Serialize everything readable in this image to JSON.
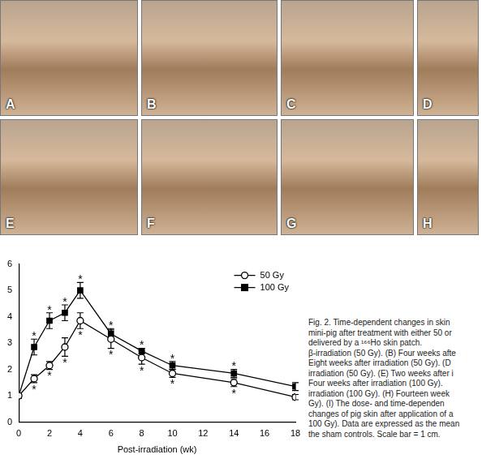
{
  "chart_data": {
    "type": "line",
    "x_label": "Post-irradiation (wk)",
    "x": [
      0,
      1,
      2,
      3,
      4,
      6,
      8,
      10,
      14,
      18
    ],
    "series": [
      {
        "name": "50 Gy",
        "color": "#000000",
        "marker": "circle",
        "values": [
          1,
          1.65,
          2.15,
          2.85,
          3.85,
          3.15,
          2.45,
          1.85,
          1.5,
          0.95
        ],
        "error": [
          0,
          0.15,
          0.15,
          0.35,
          0.3,
          0.35,
          0.25,
          0.15,
          0.15,
          0.1
        ]
      },
      {
        "name": "100 Gy",
        "color": "#000000",
        "marker": "square",
        "values": [
          1,
          2.85,
          3.85,
          4.15,
          5.0,
          3.35,
          2.7,
          2.15,
          1.85,
          1.35
        ],
        "error": [
          0,
          0.3,
          0.3,
          0.3,
          0.3,
          0.2,
          0.1,
          0.15,
          0.15,
          0.15
        ]
      }
    ],
    "annotations": [
      {
        "series": "50 Gy",
        "x": 1,
        "text": "*"
      },
      {
        "series": "50 Gy",
        "x": 2,
        "text": "*"
      },
      {
        "series": "50 Gy",
        "x": 3,
        "text": "*"
      },
      {
        "series": "50 Gy",
        "x": 4,
        "text": "*"
      },
      {
        "series": "50 Gy",
        "x": 6,
        "text": "*"
      },
      {
        "series": "50 Gy",
        "x": 8,
        "text": "*"
      },
      {
        "series": "50 Gy",
        "x": 10,
        "text": "*"
      },
      {
        "series": "50 Gy",
        "x": 14,
        "text": "*"
      },
      {
        "series": "100 Gy",
        "x": 1,
        "text": "*"
      },
      {
        "series": "100 Gy",
        "x": 2,
        "text": "*"
      },
      {
        "series": "100 Gy",
        "x": 3,
        "text": "*"
      },
      {
        "series": "100 Gy",
        "x": 4,
        "text": "*"
      },
      {
        "series": "100 Gy",
        "x": 6,
        "text": "*"
      },
      {
        "series": "100 Gy",
        "x": 8,
        "text": "*"
      },
      {
        "series": "100 Gy",
        "x": 10,
        "text": "*"
      },
      {
        "series": "100 Gy",
        "x": 14,
        "text": "*"
      }
    ],
    "xlim": [
      0,
      18
    ],
    "xticks": [
      0,
      2,
      4,
      6,
      8,
      10,
      12,
      14,
      16,
      18
    ],
    "ylim": [
      0,
      6
    ],
    "yticks": [
      0,
      1,
      2,
      3,
      4,
      5,
      6
    ],
    "grid": false,
    "legend": "upper right"
  },
  "figure": {
    "panels": [
      "A",
      "B",
      "C",
      "D",
      "E",
      "F",
      "G",
      "H"
    ],
    "caption": [
      "Fig. 2. Time-dependent changes in skin",
      "mini-pig after treatment with either 50 or",
      "delivered by a ¹⁶⁶Ho skin patch.",
      "β-irradiation (50 Gy). (B) Four weeks afte",
      "Eight weeks after irradiation (50 Gy). (D",
      "irradiation (50 Gy). (E) Two weeks after i",
      "Four weeks after irradiation (100 Gy).",
      "irradiation (100 Gy). (H) Fourteen week",
      "Gy). (I) The dose- and time-dependen",
      "changes of pig skin after application of a",
      "100 Gy). Data are expressed as the mean",
      "the sham controls. Scale bar = 1 cm."
    ]
  }
}
